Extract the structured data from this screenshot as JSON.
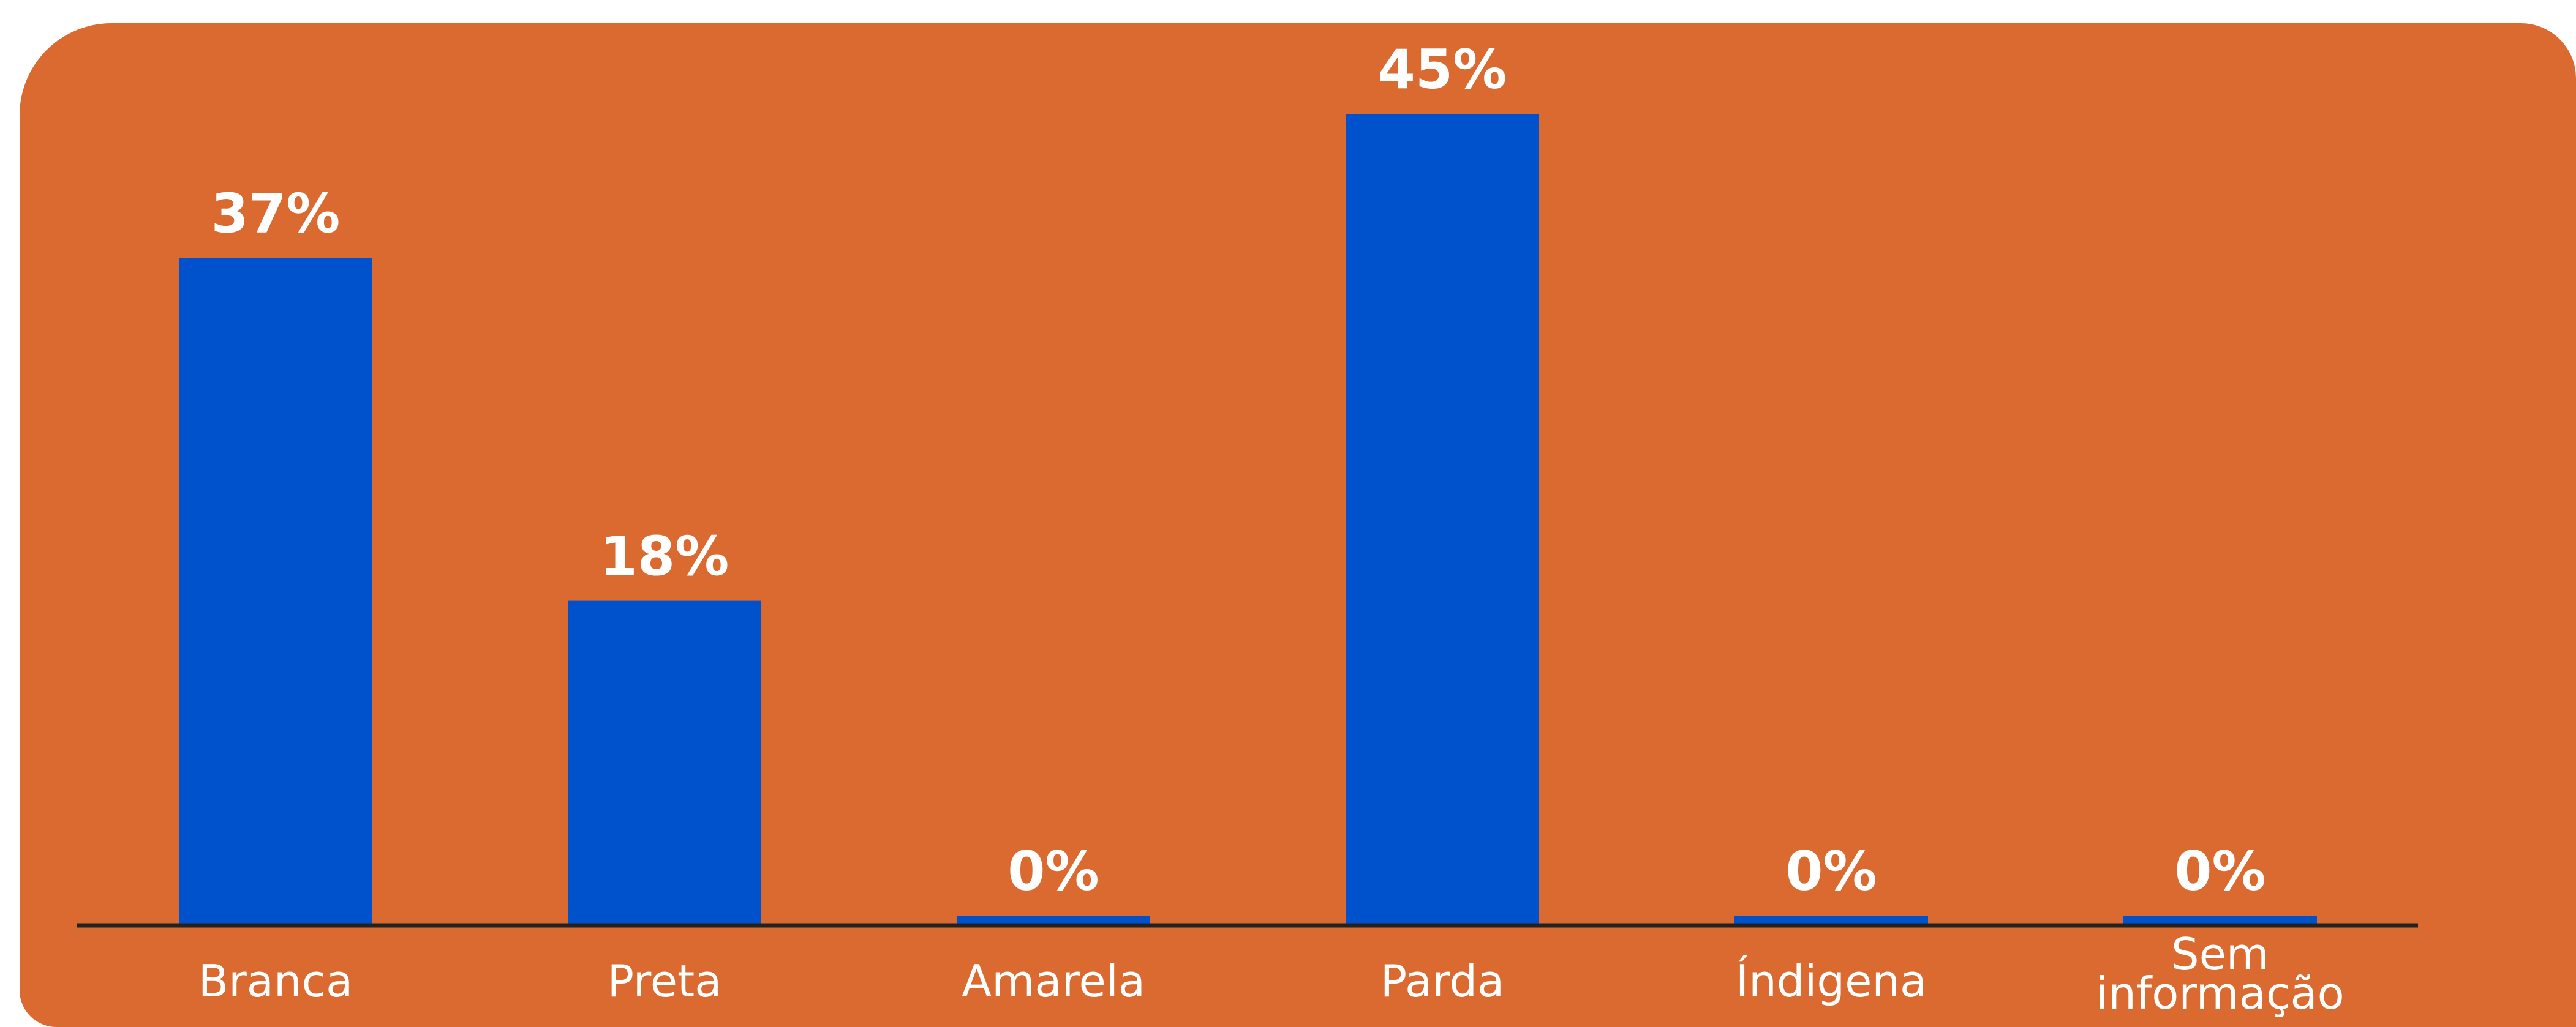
{
  "colors": {
    "background": "#DA6A2F",
    "bar": "#0052CC",
    "text": "#FFFFFF",
    "axis": "#222222"
  },
  "chart_data": {
    "type": "bar",
    "categories": [
      "Branca",
      "Preta",
      "Amarela",
      "Parda",
      "Índigena",
      "Sem informação"
    ],
    "category_lines": [
      [
        "Branca"
      ],
      [
        "Preta"
      ],
      [
        "Amarela"
      ],
      [
        "Parda"
      ],
      [
        "Índigena"
      ],
      [
        "Sem",
        "informação"
      ]
    ],
    "values": [
      37,
      18,
      0,
      45,
      0,
      0
    ],
    "value_labels": [
      "37%",
      "18%",
      "0%",
      "45%",
      "0%",
      "0%"
    ],
    "unit": "%",
    "title": "",
    "xlabel": "",
    "ylabel": "",
    "ylim": [
      0,
      45
    ],
    "grid": false,
    "legend": "none"
  }
}
